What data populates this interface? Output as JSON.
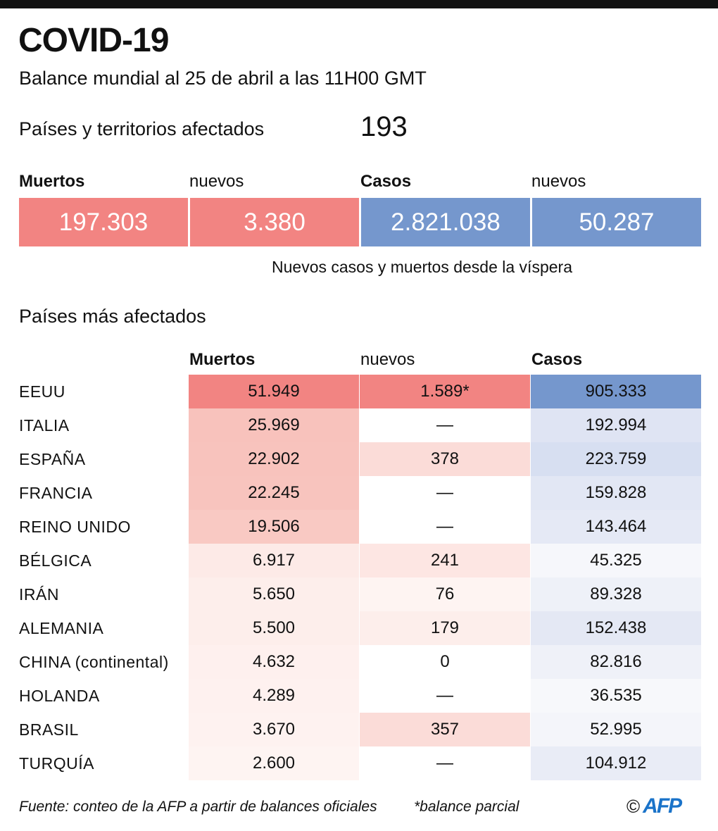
{
  "title": "COVID-19",
  "subtitle": "Balance mundial al 25 de abril a las 11H00 GMT",
  "affected": {
    "label": "Países y territorios afectados",
    "value": "193"
  },
  "summary": {
    "deaths_label": "Muertos",
    "deaths": "197.303",
    "new_deaths_label": "nuevos",
    "new_deaths": "3.380",
    "cases_label": "Casos",
    "cases": "2.821.038",
    "new_cases_label": "nuevos",
    "new_cases": "50.287",
    "note": "Nuevos casos y muertos desde la víspera",
    "colors": {
      "deaths": "#f28482",
      "cases": "#7597cd"
    }
  },
  "table": {
    "section_title": "Países más afectados",
    "headers": [
      "Muertos",
      "nuevos",
      "Casos"
    ],
    "rows": [
      {
        "country": "EEUU",
        "deaths": "51.949",
        "new": "1.589*",
        "cases": "905.333",
        "c": [
          "#f28482",
          "#f28482",
          "#7597cd"
        ]
      },
      {
        "country": "ITALIA",
        "deaths": "25.969",
        "new": "—",
        "cases": "192.994",
        "c": [
          "#f8c2bc",
          "#ffffff",
          "#dfe4f3"
        ]
      },
      {
        "country": "ESPAÑA",
        "deaths": "22.902",
        "new": "378",
        "cases": "223.759",
        "c": [
          "#f8c3bd",
          "#fbdcd8",
          "#d7dff1"
        ]
      },
      {
        "country": "FRANCIA",
        "deaths": "22.245",
        "new": "—",
        "cases": "159.828",
        "c": [
          "#f8c4be",
          "#ffffff",
          "#e2e7f4"
        ]
      },
      {
        "country": "REINO UNIDO",
        "deaths": "19.506",
        "new": "—",
        "cases": "143.464",
        "c": [
          "#f9c9c3",
          "#ffffff",
          "#e5e9f5"
        ]
      },
      {
        "country": "BÉLGICA",
        "deaths": "6.917",
        "new": "241",
        "cases": "45.325",
        "c": [
          "#fdeae7",
          "#fde6e3",
          "#f6f7fb"
        ]
      },
      {
        "country": "IRÁN",
        "deaths": "5.650",
        "new": "76",
        "cases": "89.328",
        "c": [
          "#fdeeeb",
          "#fef4f2",
          "#eef1f8"
        ]
      },
      {
        "country": "ALEMANIA",
        "deaths": "5.500",
        "new": "179",
        "cases": "152.438",
        "c": [
          "#fdeeeb",
          "#fdeeeb",
          "#e4e8f4"
        ]
      },
      {
        "country": "CHINA (continental)",
        "deaths": "4.632",
        "new": "0",
        "cases": "82.816",
        "c": [
          "#fef0ee",
          "#ffffff",
          "#eff1f8"
        ]
      },
      {
        "country": "HOLANDA",
        "deaths": "4.289",
        "new": "—",
        "cases": "36.535",
        "c": [
          "#fef1ef",
          "#ffffff",
          "#f7f8fb"
        ]
      },
      {
        "country": "BRASIL",
        "deaths": "3.670",
        "new": "357",
        "cases": "52.995",
        "c": [
          "#fef2f0",
          "#fbdcd8",
          "#f4f5fa"
        ]
      },
      {
        "country": "TURQUÍA",
        "deaths": "2.600",
        "new": "—",
        "cases": "104.912",
        "c": [
          "#fef4f2",
          "#ffffff",
          "#e9ecf6"
        ]
      }
    ]
  },
  "footer": {
    "source": "Fuente: conteo de la AFP a partir de balances oficiales",
    "note": "*balance parcial",
    "copyright": "©",
    "logo": "AFP"
  }
}
